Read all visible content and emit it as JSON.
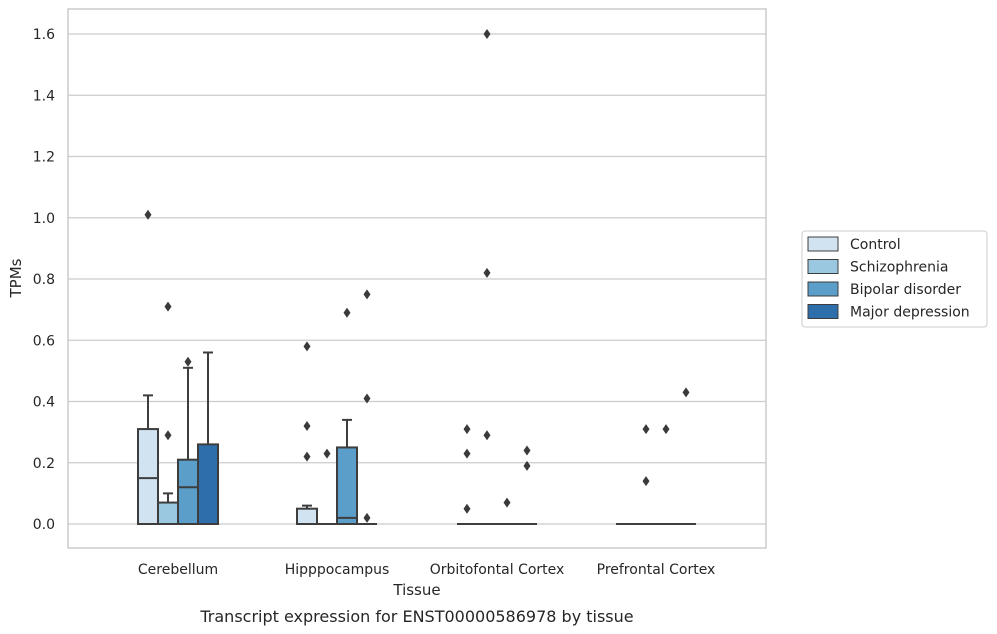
{
  "chart_data": {
    "type": "box",
    "title": "",
    "caption": "Transcript expression for ENST00000586978 by tissue",
    "xlabel": "Tissue",
    "ylabel": "TPMs",
    "ylim": [
      -0.08,
      1.68
    ],
    "yticks": [
      "0.0",
      "0.2",
      "0.4",
      "0.6",
      "0.8",
      "1.0",
      "1.2",
      "1.4",
      "1.6"
    ],
    "grid": "horizontal",
    "legend_position": "right",
    "categories": [
      "Cerebellum",
      "Hipppocampus",
      "Orbitofontal Cortex",
      "Prefrontal Cortex"
    ],
    "series": [
      {
        "name": "Control",
        "color": "#d1e2f0",
        "boxes": [
          {
            "q1": 0.0,
            "median": 0.15,
            "q3": 0.31,
            "whisker_low": 0.0,
            "whisker_high": 0.42,
            "outliers": [
              1.01
            ]
          },
          {
            "q1": 0.0,
            "median": 0.0,
            "q3": 0.05,
            "whisker_low": 0.0,
            "whisker_high": 0.06,
            "outliers": [
              0.58,
              0.32,
              0.22
            ]
          },
          {
            "q1": 0.0,
            "median": 0.0,
            "q3": 0.0,
            "whisker_low": 0.0,
            "whisker_high": 0.0,
            "outliers": [
              0.31,
              0.23,
              0.05
            ]
          },
          {
            "q1": 0.0,
            "median": 0.0,
            "q3": 0.0,
            "whisker_low": 0.0,
            "whisker_high": 0.0,
            "outliers": []
          }
        ]
      },
      {
        "name": "Schizophrenia",
        "color": "#9ac8e0",
        "boxes": [
          {
            "q1": 0.0,
            "median": 0.0,
            "q3": 0.07,
            "whisker_low": 0.0,
            "whisker_high": 0.1,
            "outliers": [
              0.71,
              0.29
            ]
          },
          {
            "q1": 0.0,
            "median": 0.0,
            "q3": 0.0,
            "whisker_low": 0.0,
            "whisker_high": 0.0,
            "outliers": [
              0.23
            ]
          },
          {
            "q1": 0.0,
            "median": 0.0,
            "q3": 0.0,
            "whisker_low": 0.0,
            "whisker_high": 0.0,
            "outliers": [
              1.6,
              0.82,
              0.29
            ]
          },
          {
            "q1": 0.0,
            "median": 0.0,
            "q3": 0.0,
            "whisker_low": 0.0,
            "whisker_high": 0.0,
            "outliers": [
              0.31,
              0.14
            ]
          }
        ]
      },
      {
        "name": "Bipolar disorder",
        "color": "#5a9ec9",
        "boxes": [
          {
            "q1": 0.0,
            "median": 0.12,
            "q3": 0.21,
            "whisker_low": 0.0,
            "whisker_high": 0.51,
            "outliers": [
              0.53
            ]
          },
          {
            "q1": 0.0,
            "median": 0.02,
            "q3": 0.25,
            "whisker_low": 0.0,
            "whisker_high": 0.34,
            "outliers": [
              0.69
            ]
          },
          {
            "q1": 0.0,
            "median": 0.0,
            "q3": 0.0,
            "whisker_low": 0.0,
            "whisker_high": 0.0,
            "outliers": [
              0.07
            ]
          },
          {
            "q1": 0.0,
            "median": 0.0,
            "q3": 0.0,
            "whisker_low": 0.0,
            "whisker_high": 0.0,
            "outliers": [
              0.31
            ]
          }
        ]
      },
      {
        "name": "Major depression",
        "color": "#2e6fab",
        "boxes": [
          {
            "q1": 0.0,
            "median": 0.0,
            "q3": 0.26,
            "whisker_low": 0.0,
            "whisker_high": 0.56,
            "outliers": []
          },
          {
            "q1": 0.0,
            "median": 0.0,
            "q3": 0.0,
            "whisker_low": 0.0,
            "whisker_high": 0.0,
            "outliers": [
              0.75,
              0.41,
              0.02
            ]
          },
          {
            "q1": 0.0,
            "median": 0.0,
            "q3": 0.0,
            "whisker_low": 0.0,
            "whisker_high": 0.0,
            "outliers": [
              0.24,
              0.19
            ]
          },
          {
            "q1": 0.0,
            "median": 0.0,
            "q3": 0.0,
            "whisker_low": 0.0,
            "whisker_high": 0.0,
            "outliers": [
              0.43
            ]
          }
        ]
      }
    ]
  }
}
